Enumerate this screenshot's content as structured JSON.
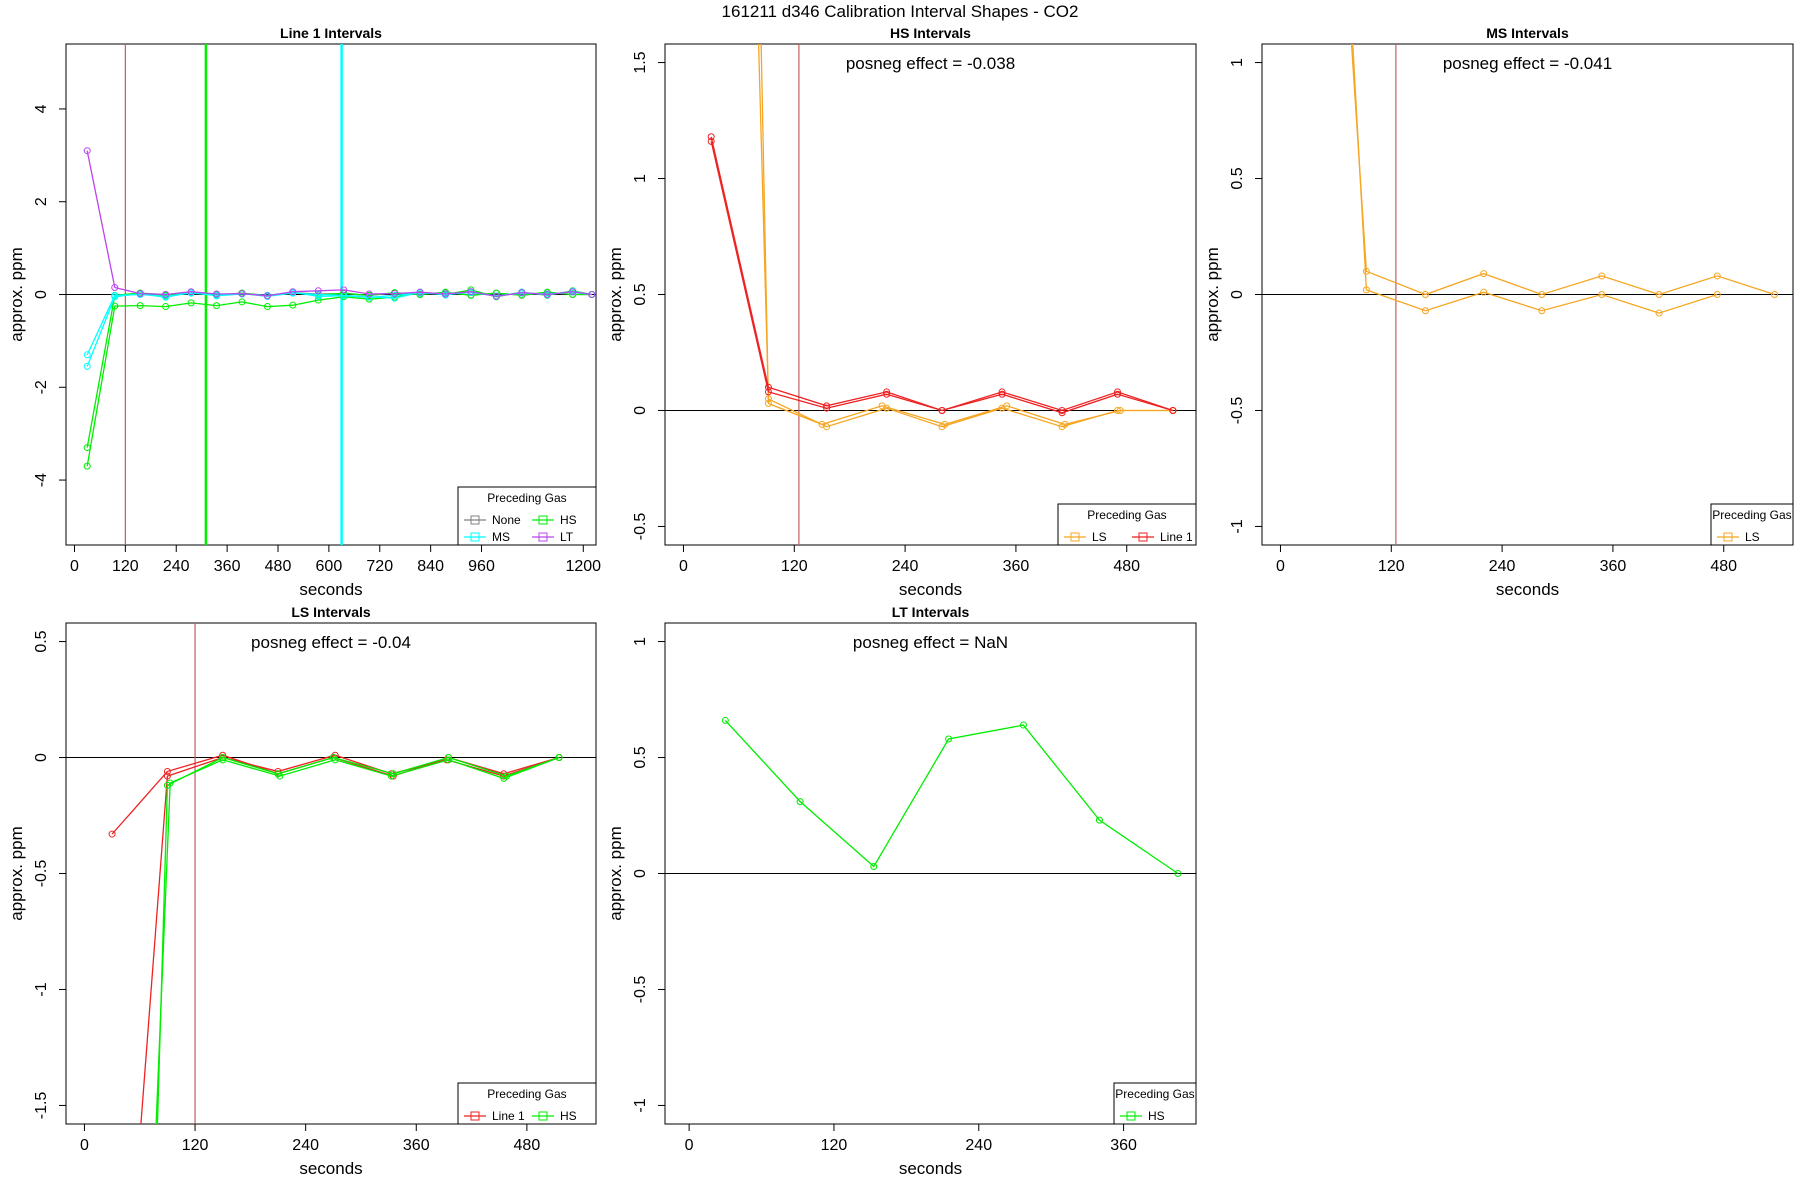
{
  "figure_title": "161211  d346   Calibration Interval Shapes - CO2",
  "colors": {
    "None": "#808080",
    "HS": "#00ee00",
    "MS": "#00ffff",
    "LT": "#bb44ee",
    "LS": "#f5a623",
    "Line 1": "#ee2222",
    "vline_time": "#c06060",
    "zero_line": "#000000"
  },
  "chart_data": [
    {
      "type": "line",
      "title": "Line 1 Intervals",
      "xlabel": "seconds",
      "ylabel": "approx. ppm",
      "xlim": [
        -20,
        1230
      ],
      "ylim": [
        -5.4,
        5.4
      ],
      "xticks": [
        0,
        120,
        240,
        360,
        480,
        600,
        720,
        840,
        960,
        1200
      ],
      "yticks": [
        -4,
        -2,
        0,
        2,
        4
      ],
      "zero_line": true,
      "vlines": [
        {
          "x": 120,
          "color": "vline_time"
        },
        {
          "x": 310,
          "color": "HS"
        },
        {
          "x": 630,
          "color": "MS"
        }
      ],
      "legend": {
        "title": "Preceding Gas",
        "position": "bottom-right",
        "columns": 2,
        "entries": [
          "None",
          "HS",
          "MS",
          "LT"
        ]
      },
      "series": [
        {
          "name": "None",
          "color": "None",
          "x": [
            95,
            155,
            215,
            275,
            335,
            395,
            455,
            515,
            575,
            635,
            695,
            755,
            815,
            875,
            935,
            995,
            1055,
            1115,
            1175,
            1220
          ],
          "y": [
            -0.02,
            0.03,
            0.0,
            0.04,
            -0.01,
            0.03,
            -0.02,
            0.04,
            0.01,
            0.02,
            -0.02,
            0.03,
            0.0,
            0.04,
            -0.01,
            0.03,
            -0.02,
            0.04,
            0.0,
            0.0
          ]
        },
        {
          "name": "HS",
          "color": "HS",
          "x": [
            30,
            95,
            155,
            215,
            275,
            335,
            395,
            455,
            515,
            575,
            635,
            695,
            755,
            815,
            875,
            935,
            995,
            1055,
            1115,
            1175,
            1220
          ],
          "y": [
            -3.3,
            -0.02,
            0.03,
            -0.02,
            0.05,
            -0.01,
            0.03,
            -0.03,
            0.04,
            -0.01,
            0.03,
            -0.02,
            0.04,
            0.0,
            0.05,
            -0.02,
            0.03,
            -0.01,
            0.05,
            0.0,
            0.0
          ]
        },
        {
          "name": "HS",
          "color": "HS",
          "x": [
            30,
            95,
            155,
            215,
            275,
            335,
            395,
            455,
            515,
            575,
            635,
            695,
            755,
            815,
            875,
            935,
            995,
            1055,
            1115,
            1175,
            1220
          ],
          "y": [
            -3.7,
            -0.25,
            -0.24,
            -0.26,
            -0.18,
            -0.24,
            -0.16,
            -0.26,
            -0.23,
            -0.12,
            -0.05,
            -0.1,
            -0.06,
            0.04,
            0.0,
            0.1,
            -0.05,
            0.05,
            -0.02,
            0.08,
            0.0
          ]
        },
        {
          "name": "MS",
          "color": "MS",
          "x": [
            30,
            95,
            155,
            215,
            275,
            335,
            395,
            455,
            515,
            575,
            635,
            695,
            755,
            815,
            875,
            935,
            995,
            1055,
            1115,
            1175,
            1220
          ],
          "y": [
            -1.3,
            -0.02,
            0.0,
            -0.04,
            0.03,
            -0.02,
            0.02,
            -0.04,
            0.03,
            0.0,
            -0.02,
            -0.05,
            -0.08,
            0.05,
            -0.01,
            0.06,
            -0.04,
            0.05,
            -0.01,
            0.07,
            0.0
          ]
        },
        {
          "name": "MS",
          "color": "MS",
          "x": [
            30,
            95,
            155,
            215,
            275,
            335,
            395,
            455,
            515,
            575,
            635,
            695,
            755,
            815,
            875,
            935,
            995,
            1055,
            1115,
            1175,
            1220
          ],
          "y": [
            -1.55,
            -0.05,
            0.02,
            -0.06,
            0.05,
            -0.03,
            0.01,
            -0.02,
            0.05,
            -0.04,
            -0.03,
            -0.06,
            -0.02,
            0.03,
            0.02,
            0.04,
            -0.03,
            0.03,
            0.01,
            0.05,
            0.0
          ]
        },
        {
          "name": "LT",
          "color": "LT",
          "x": [
            30,
            95,
            155,
            215,
            275,
            335,
            395,
            455,
            515,
            575,
            635,
            695,
            755,
            815,
            875,
            935,
            995,
            1055,
            1115,
            1175,
            1220
          ],
          "y": [
            3.1,
            0.15,
            0.02,
            0.0,
            0.06,
            0.01,
            0.02,
            -0.03,
            0.06,
            0.08,
            0.1,
            0.01,
            0.02,
            0.05,
            0.01,
            0.06,
            -0.04,
            0.04,
            0.0,
            0.06,
            0.0
          ]
        }
      ]
    },
    {
      "type": "line",
      "title": "HS Intervals",
      "xlabel": "seconds",
      "ylabel": "approx. ppm",
      "xlim": [
        -20,
        555
      ],
      "ylim": [
        -0.58,
        1.58
      ],
      "xticks": [
        0,
        120,
        240,
        360,
        480
      ],
      "yticks": [
        -0.5,
        0.0,
        0.5,
        1.0,
        1.5
      ],
      "zero_line": true,
      "annotation": "posneg effect = -0.038",
      "vlines": [
        {
          "x": 125,
          "color": "vline_time"
        }
      ],
      "legend": {
        "title": "Preceding Gas",
        "position": "bottom-right",
        "columns": 2,
        "entries": [
          "LS",
          "Line 1"
        ]
      },
      "series": [
        {
          "name": "LS",
          "color": "LS",
          "x": [
            75,
            92,
            155,
            220,
            280,
            345,
            410,
            470,
            530
          ],
          "y": [
            2.5,
            0.05,
            -0.07,
            0.01,
            -0.07,
            0.01,
            -0.07,
            0.0,
            0.0
          ]
        },
        {
          "name": "LS",
          "color": "LS",
          "x": [
            80,
            92,
            150,
            215,
            283,
            350,
            413,
            473,
            530
          ],
          "y": [
            2.4,
            0.03,
            -0.06,
            0.02,
            -0.06,
            0.02,
            -0.06,
            0.0,
            0.0
          ]
        },
        {
          "name": "Line 1",
          "color": "Line 1",
          "x": [
            30,
            92,
            155,
            220,
            280,
            345,
            410,
            470,
            530
          ],
          "y": [
            1.18,
            0.1,
            0.02,
            0.08,
            0.0,
            0.08,
            0.0,
            0.08,
            0.0
          ]
        },
        {
          "name": "Line 1",
          "color": "Line 1",
          "x": [
            30,
            92,
            155,
            220,
            280,
            345,
            410,
            470,
            530
          ],
          "y": [
            1.16,
            0.08,
            0.01,
            0.07,
            0.0,
            0.07,
            -0.01,
            0.07,
            0.0
          ]
        }
      ]
    },
    {
      "type": "line",
      "title": "MS Intervals",
      "xlabel": "seconds",
      "ylabel": "approx. ppm",
      "xlim": [
        -20,
        555
      ],
      "ylim": [
        -1.08,
        1.08
      ],
      "xticks": [
        0,
        120,
        240,
        360,
        480
      ],
      "yticks": [
        -1.0,
        -0.5,
        0.0,
        0.5,
        1.0
      ],
      "zero_line": true,
      "annotation": "posneg effect = -0.041",
      "vlines": [
        {
          "x": 125,
          "color": "vline_time"
        }
      ],
      "legend": {
        "title": "Preceding Gas",
        "position": "bottom-right",
        "columns": 1,
        "entries": [
          "LS"
        ]
      },
      "series": [
        {
          "name": "LS",
          "color": "LS",
          "x": [
            75,
            93,
            157,
            220,
            283,
            348,
            410,
            473,
            535
          ],
          "y": [
            1.2,
            0.1,
            0.0,
            0.09,
            0.0,
            0.08,
            0.0,
            0.08,
            0.0
          ]
        },
        {
          "name": "LS",
          "color": "LS",
          "x": [
            78,
            93,
            157,
            220,
            283,
            348,
            410,
            473
          ],
          "y": [
            1.1,
            0.02,
            -0.07,
            0.01,
            -0.07,
            0.0,
            -0.08,
            0.0
          ]
        }
      ]
    },
    {
      "type": "line",
      "title": "LS Intervals",
      "xlabel": "seconds",
      "ylabel": "approx. ppm",
      "xlim": [
        -20,
        555
      ],
      "ylim": [
        -1.58,
        0.58
      ],
      "xticks": [
        0,
        120,
        240,
        360,
        480
      ],
      "yticks": [
        -1.5,
        -1.0,
        -0.5,
        0.0,
        0.5
      ],
      "zero_line": true,
      "annotation": "posneg effect = -0.04",
      "vlines": [
        {
          "x": 120,
          "color": "vline_time"
        }
      ],
      "legend": {
        "title": "Preceding Gas",
        "position": "bottom-right",
        "columns": 2,
        "entries": [
          "Line 1",
          "HS"
        ]
      },
      "series": [
        {
          "name": "Line 1",
          "color": "Line 1",
          "x": [
            30,
            90,
            150,
            210,
            270,
            335,
            395,
            455,
            515
          ],
          "y": [
            -0.33,
            -0.06,
            0.01,
            -0.07,
            0.0,
            -0.08,
            0.0,
            -0.07,
            0.0
          ]
        },
        {
          "name": "Line 1",
          "color": "Line 1",
          "x": [
            58,
            90,
            150,
            210,
            272,
            333,
            393,
            455,
            515
          ],
          "y": [
            -1.75,
            -0.08,
            0.0,
            -0.06,
            0.01,
            -0.07,
            -0.01,
            -0.08,
            0.0
          ]
        },
        {
          "name": "HS",
          "color": "HS",
          "x": [
            76,
            93,
            150,
            212,
            272,
            333,
            395,
            455,
            515
          ],
          "y": [
            -1.75,
            -0.11,
            -0.01,
            -0.08,
            -0.01,
            -0.08,
            -0.01,
            -0.09,
            0.0
          ]
        },
        {
          "name": "HS",
          "color": "HS",
          "x": [
            78,
            90,
            150,
            210,
            270,
            335,
            395,
            458,
            515
          ],
          "y": [
            -1.75,
            -0.12,
            0.0,
            -0.07,
            0.0,
            -0.07,
            0.0,
            -0.08,
            0.0
          ]
        }
      ]
    },
    {
      "type": "line",
      "title": "LT Intervals",
      "xlabel": "seconds",
      "ylabel": "approx. ppm",
      "xlim": [
        -20,
        420
      ],
      "ylim": [
        -1.08,
        1.08
      ],
      "xticks": [
        0,
        120,
        240,
        360
      ],
      "yticks": [
        -1.0,
        -0.5,
        0.0,
        0.5,
        1.0
      ],
      "zero_line": true,
      "annotation": "posneg effect = NaN",
      "vlines": [],
      "legend": {
        "title": "Preceding Gas",
        "position": "bottom-right",
        "columns": 1,
        "entries": [
          "HS"
        ]
      },
      "series": [
        {
          "name": "HS",
          "color": "HS",
          "x": [
            30,
            92,
            153,
            215,
            277,
            340,
            405
          ],
          "y": [
            0.66,
            0.31,
            0.03,
            0.58,
            0.64,
            0.23,
            0.0
          ]
        }
      ]
    }
  ]
}
